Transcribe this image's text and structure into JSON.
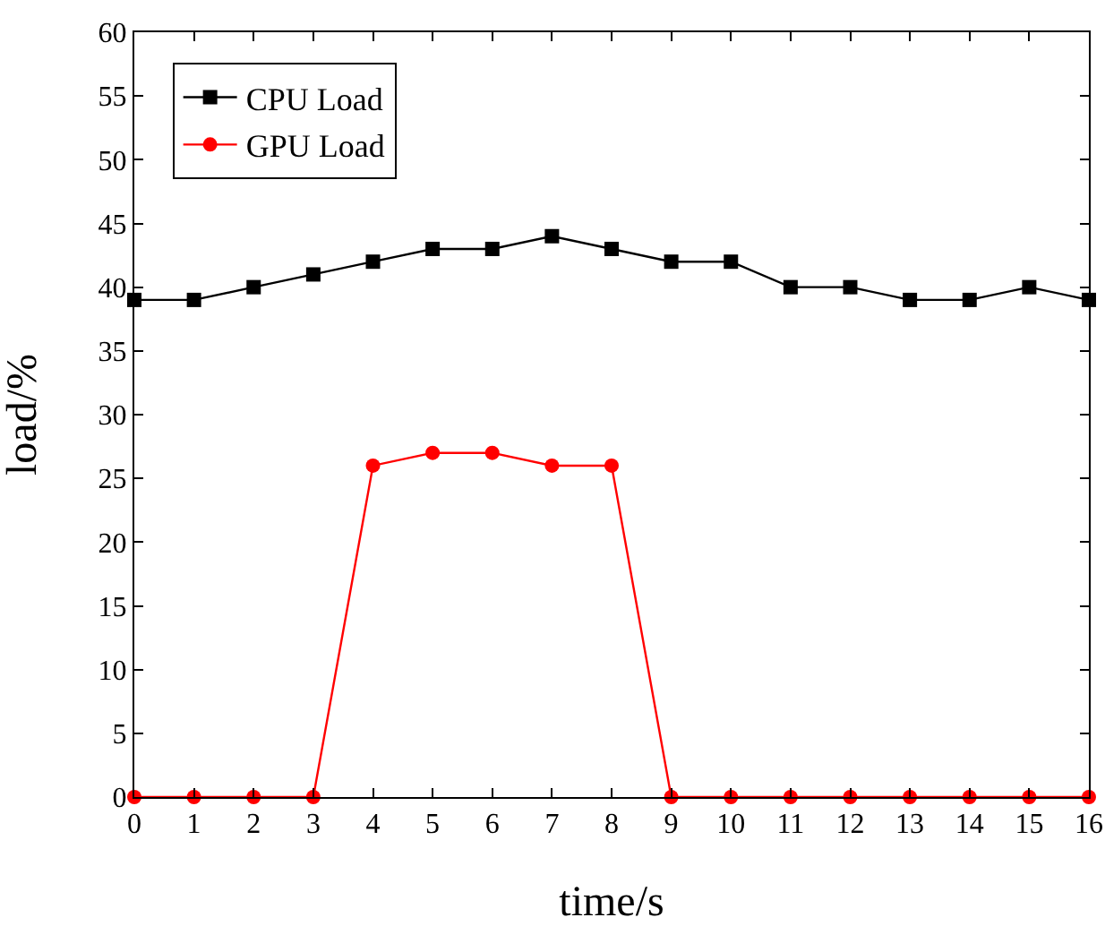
{
  "chart_data": {
    "type": "line",
    "xlabel": "time/s",
    "ylabel": "load/%",
    "x": [
      0,
      1,
      2,
      3,
      4,
      5,
      6,
      7,
      8,
      9,
      10,
      11,
      12,
      13,
      14,
      15,
      16
    ],
    "series": [
      {
        "name": "CPU Load",
        "color": "#000000",
        "marker": "square",
        "values": [
          39,
          39,
          40,
          41,
          42,
          43,
          43,
          44,
          43,
          42,
          42,
          40,
          40,
          39,
          39,
          40,
          39
        ]
      },
      {
        "name": "GPU Load",
        "color": "#ff0000",
        "marker": "circle",
        "values": [
          0,
          0,
          0,
          0,
          26,
          27,
          27,
          26,
          26,
          0,
          0,
          0,
          0,
          0,
          0,
          0,
          0
        ]
      }
    ],
    "xlim": [
      0,
      16
    ],
    "xticks": [
      0,
      1,
      2,
      3,
      4,
      5,
      6,
      7,
      8,
      9,
      10,
      11,
      12,
      13,
      14,
      15,
      16
    ],
    "ylim": [
      0,
      60
    ],
    "yticks": [
      0,
      5,
      10,
      15,
      20,
      25,
      30,
      35,
      40,
      45,
      50,
      55,
      60
    ],
    "grid": false,
    "legend": "top left",
    "line_style": "solid"
  }
}
